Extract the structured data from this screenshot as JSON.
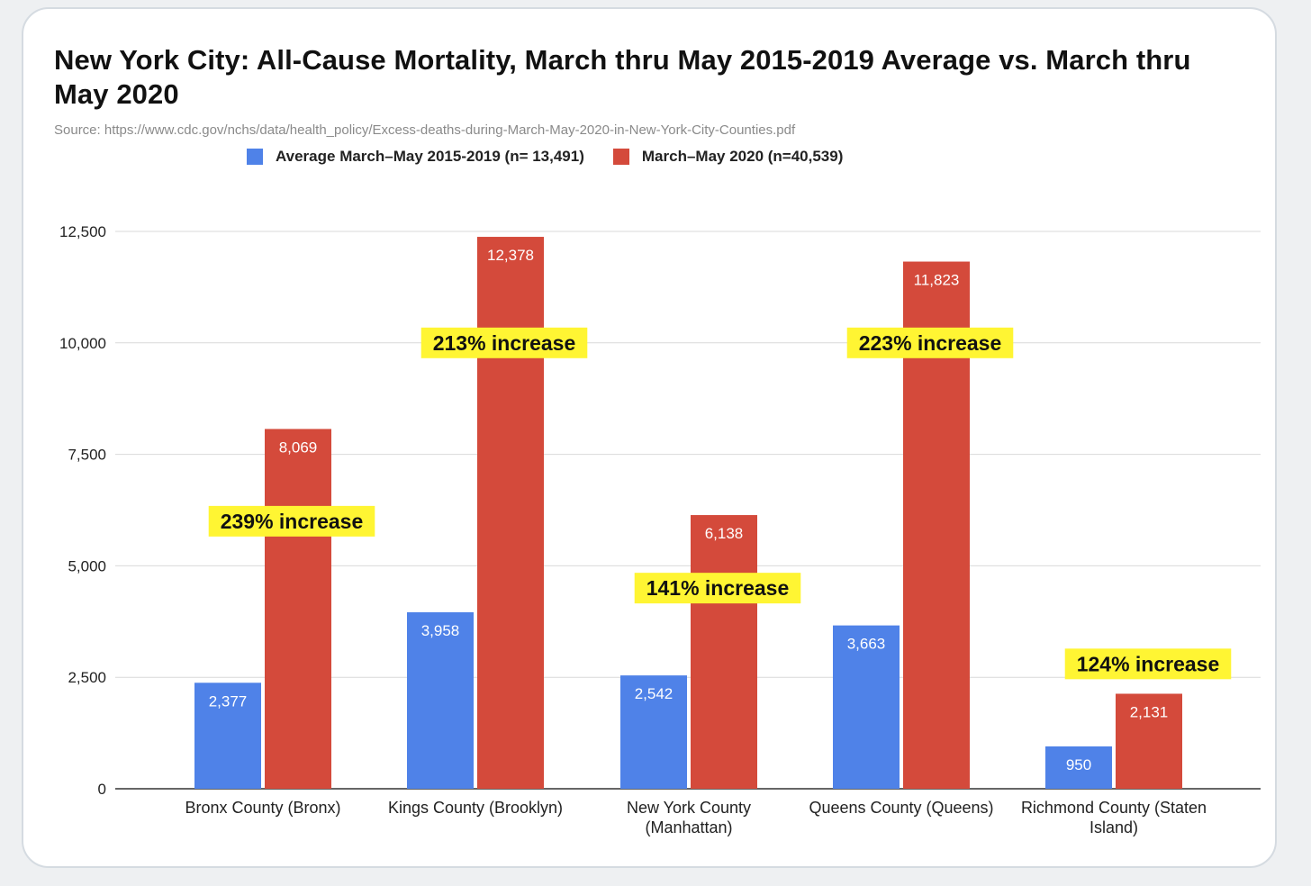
{
  "chart_data": {
    "type": "bar",
    "title": "New York City: All-Cause Mortality, March thru May 2015-2019 Average vs. March thru May 2020",
    "source": "Source: https://www.cdc.gov/nchs/data/health_policy/Excess-deaths-during-March-May-2020-in-New-York-City-Counties.pdf",
    "categories": [
      [
        "Bronx County (Bronx)"
      ],
      [
        "Kings County (Brooklyn)"
      ],
      [
        "New York County",
        "(Manhattan)"
      ],
      [
        "Queens County (Queens)"
      ],
      [
        "Richmond County (Staten",
        "Island)"
      ]
    ],
    "series": [
      {
        "name": "Average March–May 2015-2019 (n= 13,491)",
        "color": "#4f82e8",
        "values": [
          2377,
          3958,
          2542,
          3663,
          950
        ],
        "labels": [
          "2,377",
          "3,958",
          "2,542",
          "3,663",
          "950"
        ]
      },
      {
        "name": "March–May 2020 (n=40,539)",
        "color": "#d44a3b",
        "values": [
          8069,
          12378,
          6138,
          11823,
          2131
        ],
        "labels": [
          "8,069",
          "12,378",
          "6,138",
          "11,823",
          "2,131"
        ]
      }
    ],
    "annotations": [
      {
        "text": "239% increase",
        "category_index": 0,
        "value": 6000
      },
      {
        "text": "213% increase",
        "category_index": 1,
        "value": 10000
      },
      {
        "text": "141% increase",
        "category_index": 2,
        "value": 4500
      },
      {
        "text": "223% increase",
        "category_index": 3,
        "value": 10000
      },
      {
        "text": "124% increase",
        "category_index": 4,
        "value": 2800
      }
    ],
    "ylim": [
      0,
      12500
    ],
    "yticks": [
      0,
      2500,
      5000,
      7500,
      10000,
      12500
    ],
    "ytick_labels": [
      "0",
      "2,500",
      "5,000",
      "7,500",
      "10,000",
      "12,500"
    ],
    "grid": true,
    "xlabel": "",
    "ylabel": "",
    "annotation_color": "#fff533",
    "legend_position": "top"
  }
}
